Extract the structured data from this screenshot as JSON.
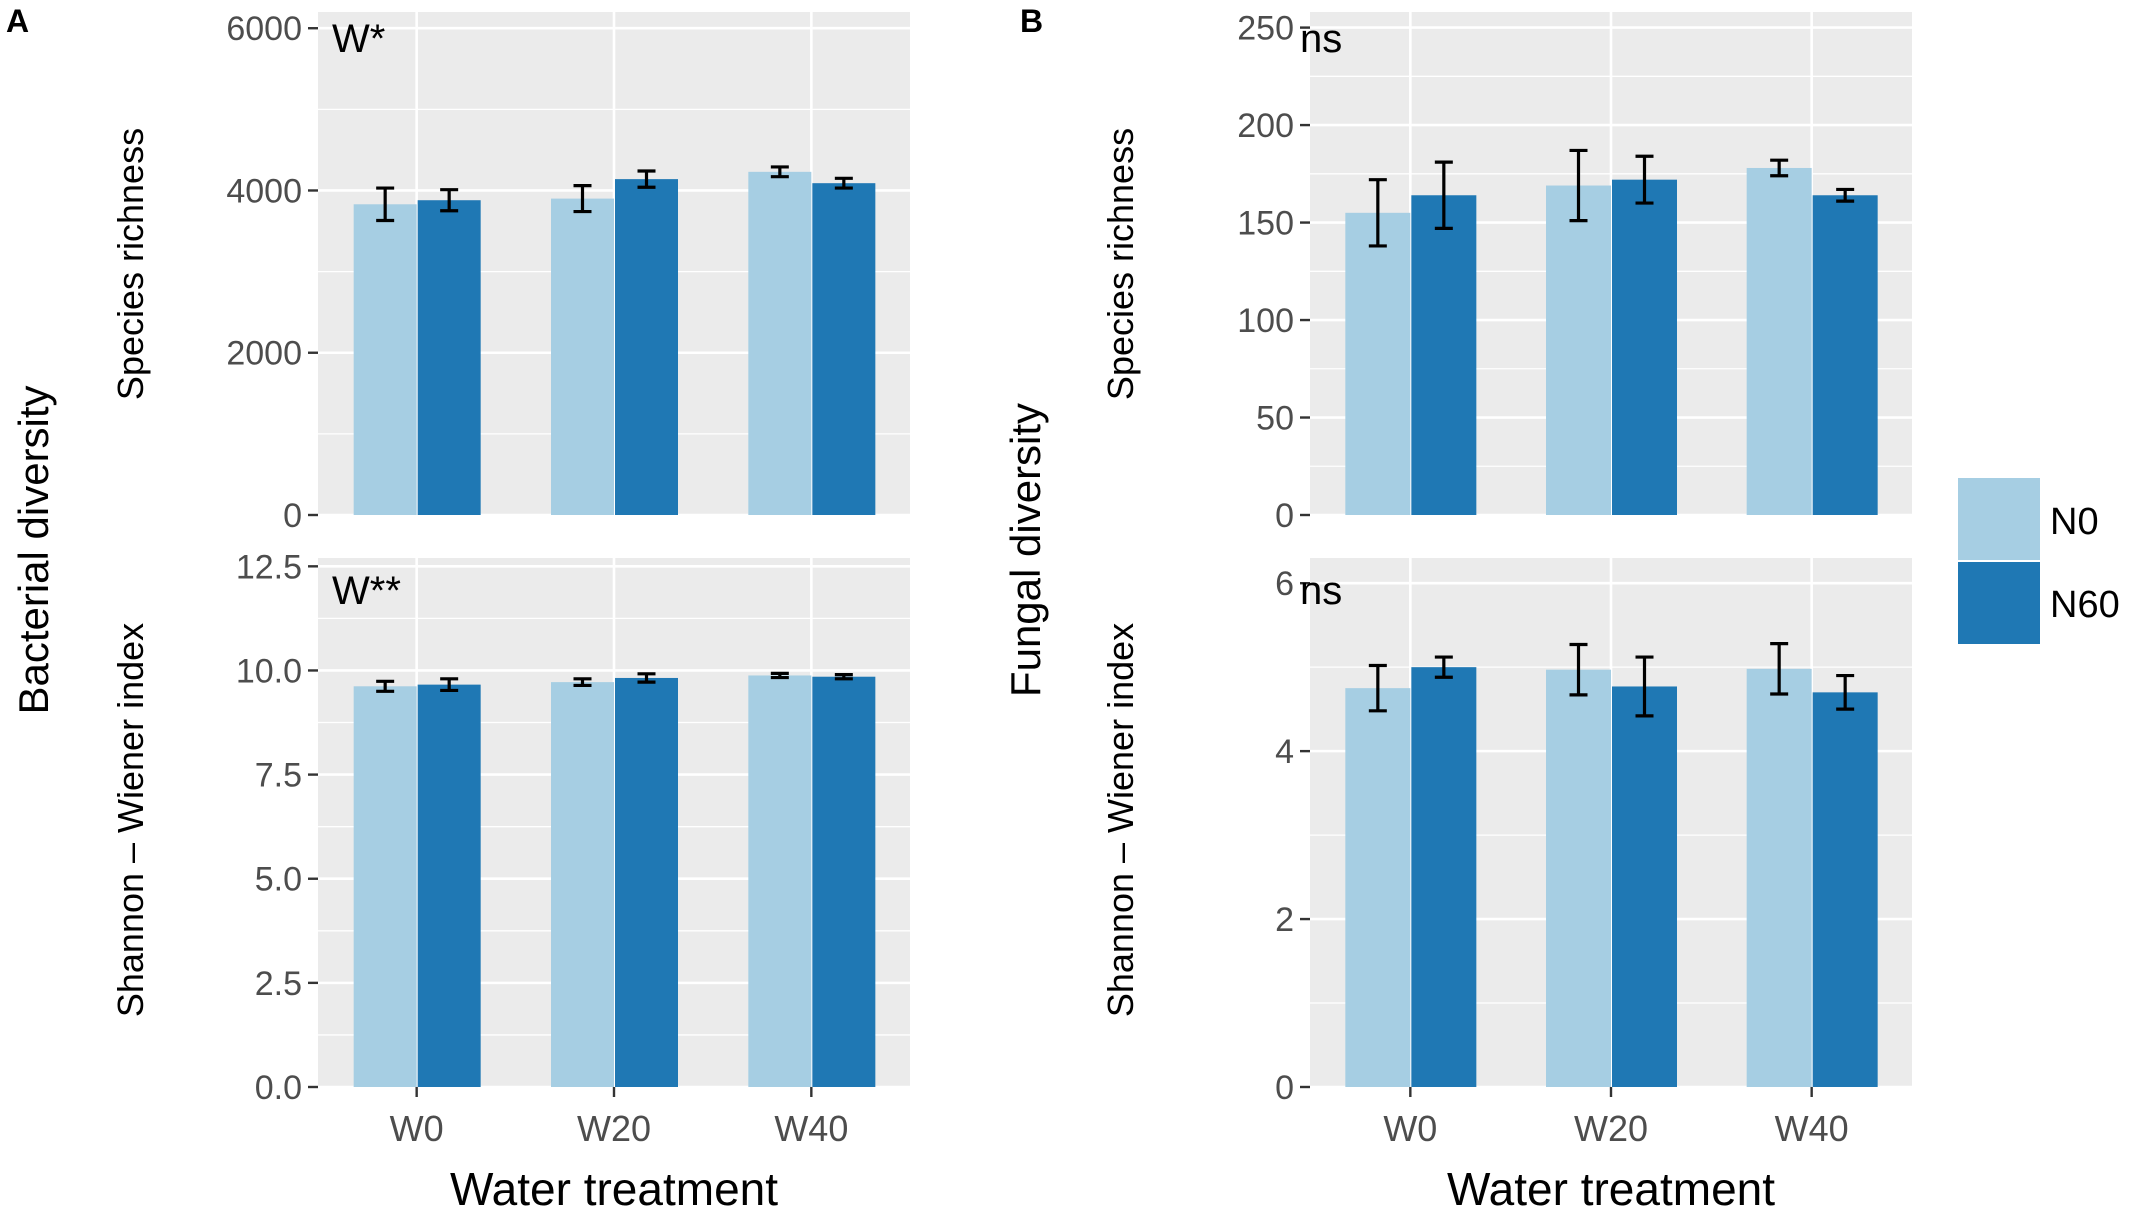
{
  "colors": {
    "N0": "#a6cee3",
    "N60": "#1f78b4",
    "panel_bg": "#ebebeb",
    "grid": "#ffffff",
    "text": "#4d4d4d",
    "title_text": "#000000"
  },
  "legend": {
    "items": [
      {
        "label": "N0",
        "color": "#a6cee3"
      },
      {
        "label": "N60",
        "color": "#1f78b4"
      }
    ]
  },
  "chart_data": [
    {
      "type": "bar",
      "panel_label": "A",
      "group_ylabel": "Bacterial diversity",
      "xlabel": "Water treatment",
      "categories": [
        "W0",
        "W20",
        "W40"
      ],
      "facets": [
        {
          "ylabel": "Species richness",
          "significance": "W*",
          "ylim": [
            0,
            6200
          ],
          "yticks": [
            0,
            2000,
            4000,
            6000
          ],
          "ytick_labels": [
            "0",
            "2000",
            "4000",
            "6000"
          ],
          "series": [
            {
              "name": "N0",
              "values": [
                3830,
                3900,
                4230
              ],
              "err": [
                200,
                160,
                60
              ]
            },
            {
              "name": "N60",
              "values": [
                3880,
                4140,
                4090
              ],
              "err": [
                130,
                100,
                60
              ]
            }
          ]
        },
        {
          "ylabel": "Shannon – Wiener index",
          "significance": "W**",
          "ylim": [
            0,
            12.7
          ],
          "yticks": [
            0,
            2.5,
            5,
            7.5,
            10,
            12.5
          ],
          "ytick_labels": [
            "0.0",
            "2.5",
            "5.0",
            "7.5",
            "10.0",
            "12.5"
          ],
          "series": [
            {
              "name": "N0",
              "values": [
                9.62,
                9.72,
                9.88
              ],
              "err": [
                0.12,
                0.08,
                0.05
              ]
            },
            {
              "name": "N60",
              "values": [
                9.66,
                9.82,
                9.85
              ],
              "err": [
                0.14,
                0.1,
                0.05
              ]
            }
          ]
        }
      ]
    },
    {
      "type": "bar",
      "panel_label": "B",
      "group_ylabel": "Fungal diversity",
      "xlabel": "Water treatment",
      "categories": [
        "W0",
        "W20",
        "W40"
      ],
      "facets": [
        {
          "ylabel": "Species richness",
          "significance": "ns",
          "ylim": [
            0,
            258
          ],
          "yticks": [
            0,
            50,
            100,
            150,
            200,
            250
          ],
          "ytick_labels": [
            "0",
            "50",
            "100",
            "150",
            "200",
            "250"
          ],
          "series": [
            {
              "name": "N0",
              "values": [
                155,
                169,
                178
              ],
              "err": [
                17,
                18,
                4
              ]
            },
            {
              "name": "N60",
              "values": [
                164,
                172,
                164
              ],
              "err": [
                17,
                12,
                3
              ]
            }
          ]
        },
        {
          "ylabel": "Shannon – Wiener index",
          "significance": "ns",
          "ylim": [
            0,
            6.3
          ],
          "yticks": [
            0,
            2,
            4,
            6
          ],
          "ytick_labels": [
            "0",
            "2",
            "4",
            "6"
          ],
          "series": [
            {
              "name": "N0",
              "values": [
                4.75,
                4.97,
                4.98
              ],
              "err": [
                0.27,
                0.3,
                0.3
              ]
            },
            {
              "name": "N60",
              "values": [
                5.0,
                4.77,
                4.7
              ],
              "err": [
                0.12,
                0.35,
                0.2
              ]
            }
          ]
        }
      ]
    }
  ]
}
